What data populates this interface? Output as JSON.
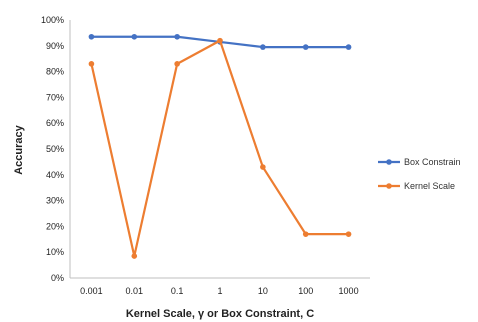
{
  "chart_data": {
    "type": "line",
    "categories": [
      "0.001",
      "0.01",
      "0.1",
      "1",
      "10",
      "100",
      "1000"
    ],
    "series": [
      {
        "name": "Box Constrain",
        "values": [
          93.5,
          93.5,
          93.5,
          91.5,
          89.5,
          89.5,
          89.5
        ],
        "color": "#4472c4"
      },
      {
        "name": "Kernel Scale",
        "values": [
          83,
          8.5,
          83,
          92,
          43,
          17,
          17
        ],
        "color": "#ed7d31"
      }
    ],
    "ylim": [
      0,
      100
    ],
    "yticks": [
      "0%",
      "10%",
      "20%",
      "30%",
      "40%",
      "50%",
      "60%",
      "70%",
      "80%",
      "90%",
      "100%"
    ],
    "xlabel": "Kernel Scale, γ or Box Constraint, C",
    "ylabel": "Accuracy",
    "grid": false,
    "legend_position": "right"
  }
}
